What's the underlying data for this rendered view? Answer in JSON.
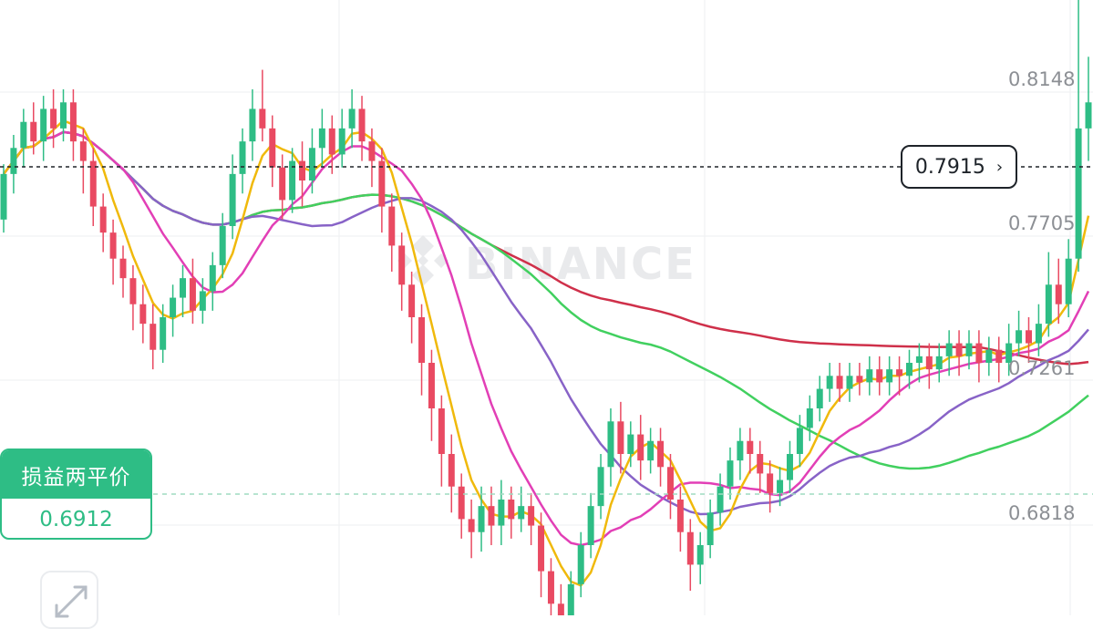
{
  "watermark": "BINANCE",
  "current_price": {
    "value": "0.7915",
    "chevron": "›"
  },
  "pnl_badge": {
    "title": "损益两平价",
    "value": "0.6912"
  },
  "colors": {
    "up": "#2ebd85",
    "down": "#e94a62",
    "background": "#ffffff",
    "grid": "#eeeff2",
    "ma_yellow": "#f0b90b",
    "ma_pink": "#e23fb6",
    "ma_purple": "#8863c7",
    "ma_green": "#41d05f",
    "ma_crimson": "#cf304a"
  },
  "icons": {
    "expand": "expand-arrows-icon"
  },
  "chart_data": {
    "type": "candlestick",
    "y_ticks": [
      "0.8148",
      "0.7705",
      "0.7261",
      "0.6818"
    ],
    "ylim": [
      0.64,
      0.84
    ],
    "current_price": 0.7915,
    "breakeven_price": 0.6912,
    "grid": true,
    "candles": [
      [
        0.772,
        0.786,
        0.768,
        0.789
      ],
      [
        0.786,
        0.794,
        0.78,
        0.798
      ],
      [
        0.794,
        0.802,
        0.788,
        0.806
      ],
      [
        0.802,
        0.796,
        0.792,
        0.808
      ],
      [
        0.796,
        0.806,
        0.79,
        0.81
      ],
      [
        0.806,
        0.8,
        0.794,
        0.812
      ],
      [
        0.8,
        0.808,
        0.796,
        0.812
      ],
      [
        0.808,
        0.796,
        0.79,
        0.812
      ],
      [
        0.796,
        0.79,
        0.78,
        0.8
      ],
      [
        0.79,
        0.776,
        0.77,
        0.794
      ],
      [
        0.776,
        0.768,
        0.762,
        0.78
      ],
      [
        0.768,
        0.76,
        0.752,
        0.772
      ],
      [
        0.76,
        0.754,
        0.748,
        0.764
      ],
      [
        0.754,
        0.746,
        0.738,
        0.758
      ],
      [
        0.746,
        0.74,
        0.734,
        0.752
      ],
      [
        0.74,
        0.732,
        0.726,
        0.746
      ],
      [
        0.732,
        0.742,
        0.728,
        0.746
      ],
      [
        0.742,
        0.748,
        0.736,
        0.752
      ],
      [
        0.748,
        0.754,
        0.742,
        0.758
      ],
      [
        0.754,
        0.744,
        0.74,
        0.76
      ],
      [
        0.744,
        0.75,
        0.74,
        0.754
      ],
      [
        0.75,
        0.758,
        0.744,
        0.762
      ],
      [
        0.758,
        0.77,
        0.754,
        0.774
      ],
      [
        0.77,
        0.786,
        0.766,
        0.792
      ],
      [
        0.786,
        0.796,
        0.78,
        0.8
      ],
      [
        0.796,
        0.806,
        0.79,
        0.812
      ],
      [
        0.806,
        0.8,
        0.796,
        0.818
      ],
      [
        0.8,
        0.788,
        0.782,
        0.804
      ],
      [
        0.788,
        0.778,
        0.772,
        0.792
      ],
      [
        0.778,
        0.79,
        0.774,
        0.794
      ],
      [
        0.79,
        0.784,
        0.776,
        0.796
      ],
      [
        0.784,
        0.794,
        0.78,
        0.8
      ],
      [
        0.794,
        0.8,
        0.788,
        0.806
      ],
      [
        0.8,
        0.792,
        0.786,
        0.804
      ],
      [
        0.792,
        0.8,
        0.788,
        0.806
      ],
      [
        0.8,
        0.806,
        0.794,
        0.812
      ],
      [
        0.806,
        0.796,
        0.79,
        0.81
      ],
      [
        0.796,
        0.79,
        0.782,
        0.8
      ],
      [
        0.79,
        0.776,
        0.768,
        0.794
      ],
      [
        0.776,
        0.764,
        0.756,
        0.78
      ],
      [
        0.764,
        0.752,
        0.744,
        0.768
      ],
      [
        0.752,
        0.742,
        0.734,
        0.756
      ],
      [
        0.742,
        0.728,
        0.718,
        0.746
      ],
      [
        0.728,
        0.714,
        0.704,
        0.732
      ],
      [
        0.714,
        0.7,
        0.69,
        0.718
      ],
      [
        0.7,
        0.69,
        0.682,
        0.706
      ],
      [
        0.69,
        0.68,
        0.674,
        0.694
      ],
      [
        0.68,
        0.676,
        0.668,
        0.686
      ],
      [
        0.676,
        0.684,
        0.67,
        0.69
      ],
      [
        0.684,
        0.678,
        0.672,
        0.69
      ],
      [
        0.678,
        0.686,
        0.672,
        0.692
      ],
      [
        0.686,
        0.68,
        0.674,
        0.69
      ],
      [
        0.68,
        0.684,
        0.676,
        0.69
      ],
      [
        0.684,
        0.678,
        0.672,
        0.688
      ],
      [
        0.678,
        0.664,
        0.656,
        0.682
      ],
      [
        0.664,
        0.654,
        0.642,
        0.668
      ],
      [
        0.654,
        0.648,
        0.64,
        0.66
      ],
      [
        0.648,
        0.66,
        0.644,
        0.664
      ],
      [
        0.66,
        0.672,
        0.656,
        0.676
      ],
      [
        0.672,
        0.684,
        0.668,
        0.688
      ],
      [
        0.684,
        0.696,
        0.68,
        0.7
      ],
      [
        0.696,
        0.71,
        0.69,
        0.714
      ],
      [
        0.71,
        0.7,
        0.694,
        0.716
      ],
      [
        0.7,
        0.706,
        0.696,
        0.71
      ],
      [
        0.706,
        0.698,
        0.692,
        0.712
      ],
      [
        0.698,
        0.704,
        0.694,
        0.708
      ],
      [
        0.704,
        0.696,
        0.69,
        0.708
      ],
      [
        0.696,
        0.686,
        0.68,
        0.7
      ],
      [
        0.686,
        0.676,
        0.67,
        0.69
      ],
      [
        0.676,
        0.666,
        0.658,
        0.68
      ],
      [
        0.666,
        0.672,
        0.66,
        0.676
      ],
      [
        0.672,
        0.682,
        0.668,
        0.686
      ],
      [
        0.682,
        0.69,
        0.678,
        0.694
      ],
      [
        0.69,
        0.698,
        0.686,
        0.702
      ],
      [
        0.698,
        0.704,
        0.692,
        0.708
      ],
      [
        0.704,
        0.7,
        0.694,
        0.708
      ],
      [
        0.7,
        0.694,
        0.688,
        0.704
      ],
      [
        0.694,
        0.688,
        0.682,
        0.698
      ],
      [
        0.688,
        0.692,
        0.684,
        0.696
      ],
      [
        0.692,
        0.7,
        0.688,
        0.704
      ],
      [
        0.7,
        0.708,
        0.696,
        0.712
      ],
      [
        0.708,
        0.714,
        0.704,
        0.718
      ],
      [
        0.714,
        0.72,
        0.71,
        0.724
      ],
      [
        0.72,
        0.724,
        0.716,
        0.728
      ],
      [
        0.724,
        0.72,
        0.716,
        0.728
      ],
      [
        0.72,
        0.724,
        0.716,
        0.728
      ],
      [
        0.724,
        0.722,
        0.718,
        0.728
      ],
      [
        0.722,
        0.726,
        0.718,
        0.73
      ],
      [
        0.726,
        0.722,
        0.718,
        0.73
      ],
      [
        0.722,
        0.726,
        0.718,
        0.73
      ],
      [
        0.726,
        0.724,
        0.718,
        0.73
      ],
      [
        0.724,
        0.728,
        0.72,
        0.732
      ],
      [
        0.728,
        0.73,
        0.722,
        0.734
      ],
      [
        0.73,
        0.726,
        0.72,
        0.734
      ],
      [
        0.726,
        0.73,
        0.722,
        0.734
      ],
      [
        0.73,
        0.734,
        0.724,
        0.738
      ],
      [
        0.734,
        0.73,
        0.724,
        0.738
      ],
      [
        0.73,
        0.734,
        0.726,
        0.738
      ],
      [
        0.734,
        0.728,
        0.722,
        0.738
      ],
      [
        0.728,
        0.732,
        0.724,
        0.736
      ],
      [
        0.732,
        0.728,
        0.722,
        0.736
      ],
      [
        0.728,
        0.734,
        0.724,
        0.74
      ],
      [
        0.734,
        0.738,
        0.73,
        0.744
      ],
      [
        0.738,
        0.734,
        0.728,
        0.742
      ],
      [
        0.734,
        0.74,
        0.73,
        0.746
      ],
      [
        0.74,
        0.752,
        0.736,
        0.762
      ],
      [
        0.752,
        0.746,
        0.74,
        0.76
      ],
      [
        0.746,
        0.76,
        0.742,
        0.766
      ],
      [
        0.76,
        0.8,
        0.756,
        0.84
      ],
      [
        0.8,
        0.808,
        0.79,
        0.822
      ]
    ]
  }
}
